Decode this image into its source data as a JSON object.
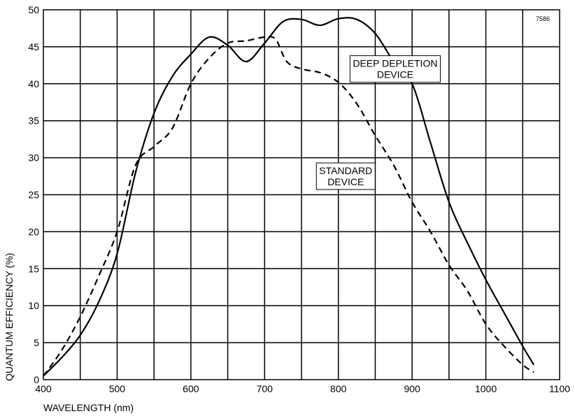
{
  "chart_data": {
    "type": "line",
    "figure_id": "7586",
    "xlabel": "WAVELENGTH (nm)",
    "ylabel": "QUANTUM EFFICIENCY (%)",
    "xlim": [
      400,
      1100
    ],
    "ylim": [
      0,
      50
    ],
    "x_ticks": [
      400,
      500,
      600,
      700,
      800,
      900,
      1000,
      1100
    ],
    "y_ticks": [
      0,
      5,
      10,
      15,
      20,
      25,
      30,
      35,
      40,
      45,
      50
    ],
    "grid": {
      "x_step": 50,
      "y_step": 5,
      "visible": true
    },
    "annotations": [
      {
        "lines": [
          "DEEP DEPLETION",
          "DEVICE"
        ],
        "x": 877,
        "y": 42
      },
      {
        "lines": [
          "STANDARD",
          "DEVICE"
        ],
        "x": 810,
        "y": 27.5
      }
    ],
    "series": [
      {
        "style": "solid",
        "color": "#000000",
        "x": [
          400,
          425,
          450,
          475,
          500,
          525,
          550,
          575,
          600,
          625,
          650,
          675,
          700,
          725,
          750,
          775,
          800,
          825,
          850,
          875,
          900,
          925,
          950,
          975,
          1000,
          1025,
          1050,
          1065
        ],
        "y": [
          0.5,
          3,
          6,
          10.5,
          17,
          28,
          36,
          41,
          44,
          46.3,
          45.2,
          43,
          45.5,
          48.4,
          48.7,
          47.9,
          48.8,
          48.7,
          46.8,
          43,
          40,
          32,
          24,
          18.5,
          13.5,
          9,
          4.5,
          2
        ]
      },
      {
        "style": "dashed",
        "color": "#000000",
        "x": [
          400,
          425,
          450,
          475,
          500,
          525,
          550,
          575,
          600,
          625,
          650,
          675,
          700,
          715,
          730,
          750,
          775,
          800,
          825,
          850,
          875,
          900,
          925,
          950,
          975,
          1000,
          1025,
          1050,
          1065
        ],
        "y": [
          0.5,
          4,
          8.5,
          14,
          20,
          29,
          31.5,
          34,
          40,
          43.5,
          45.5,
          45.8,
          46.3,
          46,
          43,
          42,
          41.5,
          40.2,
          37.3,
          33,
          29,
          24,
          20,
          15.5,
          12,
          7.5,
          4.5,
          2,
          1
        ]
      }
    ]
  }
}
